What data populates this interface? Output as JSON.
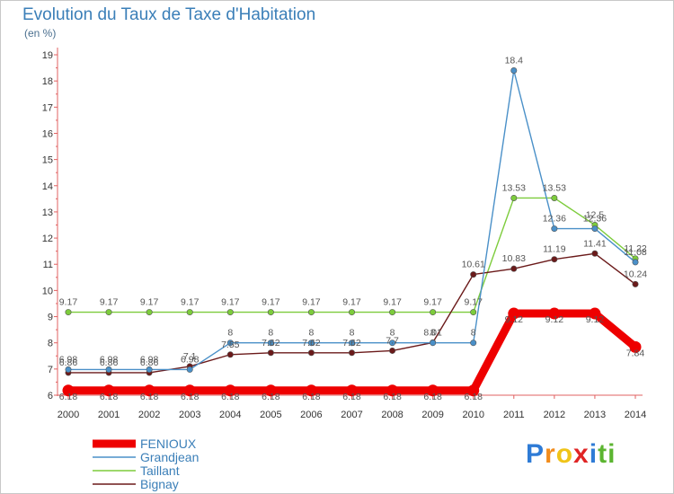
{
  "chart_data": {
    "type": "line",
    "title": "Evolution du Taux de Taxe d'Habitation",
    "ylabel": "(en %)",
    "xlabel": "",
    "ylim": [
      6,
      19
    ],
    "yticks": [
      "6",
      "7",
      "8",
      "9",
      "10",
      "11",
      "12",
      "13",
      "14",
      "15",
      "16",
      "17",
      "18",
      "19"
    ],
    "x": [
      "2000",
      "2001",
      "2002",
      "2003",
      "2004",
      "2005",
      "2006",
      "2007",
      "2008",
      "2009",
      "2010",
      "2011",
      "2012",
      "2013",
      "2014"
    ],
    "grid": false,
    "legend_position": "bottom-left",
    "series": [
      {
        "name": "FENIOUX",
        "color": "#ee0000",
        "values": [
          6.18,
          6.18,
          6.18,
          6.18,
          6.18,
          6.18,
          6.18,
          6.18,
          6.18,
          6.18,
          6.18,
          9.12,
          9.12,
          9.12,
          7.84
        ],
        "labels": [
          "6.18",
          "6.18",
          "6.18",
          "6.18",
          "6.18",
          "6.18",
          "6.18",
          "6.18",
          "6.18",
          "6.18",
          "6.18",
          "9.12",
          "9.12",
          "9.12",
          "7.84"
        ]
      },
      {
        "name": "Grandjean",
        "color": "#4a90c8",
        "values": [
          6.98,
          6.98,
          6.98,
          6.98,
          8,
          8,
          8,
          8,
          8,
          8,
          8,
          18.4,
          12.36,
          12.36,
          11.08
        ],
        "labels": [
          "6.98",
          "6.98",
          "6.98",
          "6.98",
          "8",
          "8",
          "8",
          "8",
          "8",
          "8",
          "8",
          "18.4",
          "12.36",
          "12.36",
          "11.08"
        ]
      },
      {
        "name": "Taillant",
        "color": "#7dcc3c",
        "values": [
          9.17,
          9.17,
          9.17,
          9.17,
          9.17,
          9.17,
          9.17,
          9.17,
          9.17,
          9.17,
          9.17,
          13.53,
          13.53,
          12.5,
          11.22
        ],
        "labels": [
          "9.17",
          "9.17",
          "9.17",
          "9.17",
          "9.17",
          "9.17",
          "9.17",
          "9.17",
          "9.17",
          "9.17",
          "9.17",
          "13.53",
          "13.53",
          "12.5",
          "11.22"
        ]
      },
      {
        "name": "Bignay",
        "color": "#6b1a1a",
        "values": [
          6.86,
          6.86,
          6.86,
          7.1,
          7.55,
          7.62,
          7.62,
          7.62,
          7.7,
          8.01,
          10.61,
          10.83,
          11.19,
          11.41,
          10.24
        ],
        "labels": [
          "6.86",
          "6.86",
          "6.86",
          "7.1",
          "7.55",
          "7.62",
          "7.62",
          "7.62",
          "7.7",
          "8.01",
          "10.61",
          "10.83",
          "11.19",
          "11.41",
          "10.24"
        ]
      }
    ]
  },
  "logo": {
    "letters": [
      "P",
      "r",
      "o",
      "x",
      "i",
      "t",
      "i"
    ],
    "colors": [
      "#2e7bd6",
      "#f28c1b",
      "#f0c419",
      "#e02424",
      "#2e7bd6",
      "#5cb531",
      "#5cb531"
    ]
  }
}
